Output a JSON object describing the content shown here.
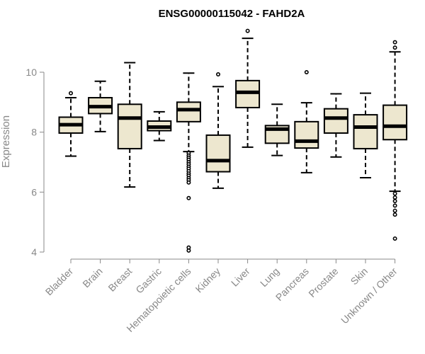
{
  "chart_data": {
    "type": "boxplot",
    "title": "ENSG00000115042 - FAHD2A",
    "xlabel": "",
    "ylabel": "Expression",
    "ylim": [
      4,
      11.5
    ],
    "yticks": [
      4,
      6,
      8,
      10
    ],
    "categories": [
      "Bladder",
      "Brain",
      "Breast",
      "Gastric",
      "Hematopoietic cells",
      "Kidney",
      "Liver",
      "Lung",
      "Pancreas",
      "Prostate",
      "Skin",
      "Unknown / Other"
    ],
    "boxes": [
      {
        "min": 7.2,
        "q1": 7.97,
        "median": 8.25,
        "q3": 8.5,
        "max": 9.15,
        "outliers": [
          9.3
        ]
      },
      {
        "min": 8.02,
        "q1": 8.62,
        "median": 8.85,
        "q3": 9.15,
        "max": 9.7,
        "outliers": []
      },
      {
        "min": 6.17,
        "q1": 7.45,
        "median": 8.47,
        "q3": 8.93,
        "max": 10.32,
        "outliers": []
      },
      {
        "min": 7.72,
        "q1": 8.05,
        "median": 8.17,
        "q3": 8.37,
        "max": 8.68,
        "outliers": []
      },
      {
        "min": 7.35,
        "q1": 8.35,
        "median": 8.75,
        "q3": 9.0,
        "max": 9.97,
        "outliers": [
          7.3,
          7.22,
          7.15,
          7.08,
          7.0,
          6.93,
          6.85,
          6.78,
          6.7,
          6.62,
          6.55,
          6.47,
          6.4,
          6.32,
          5.8,
          4.15,
          4.05
        ]
      },
      {
        "min": 6.13,
        "q1": 6.68,
        "median": 7.05,
        "q3": 7.9,
        "max": 9.52,
        "outliers": [
          9.93
        ]
      },
      {
        "min": 7.5,
        "q1": 8.82,
        "median": 9.33,
        "q3": 9.72,
        "max": 11.13,
        "outliers": [
          11.38
        ]
      },
      {
        "min": 7.22,
        "q1": 7.63,
        "median": 8.1,
        "q3": 8.22,
        "max": 8.93,
        "outliers": []
      },
      {
        "min": 6.65,
        "q1": 7.47,
        "median": 7.7,
        "q3": 8.35,
        "max": 8.98,
        "outliers": [
          10.0
        ]
      },
      {
        "min": 7.17,
        "q1": 7.97,
        "median": 8.47,
        "q3": 8.78,
        "max": 9.28,
        "outliers": []
      },
      {
        "min": 6.48,
        "q1": 7.45,
        "median": 8.17,
        "q3": 8.58,
        "max": 9.3,
        "outliers": []
      },
      {
        "min": 6.03,
        "q1": 7.75,
        "median": 8.2,
        "q3": 8.9,
        "max": 10.68,
        "outliers": [
          10.82,
          11.0,
          5.95,
          5.82,
          5.7,
          5.55,
          5.38,
          5.25,
          4.45
        ]
      }
    ],
    "colors": {
      "box_fill": "#ede7cf",
      "stroke": "#000000",
      "axis": "#888888"
    }
  }
}
